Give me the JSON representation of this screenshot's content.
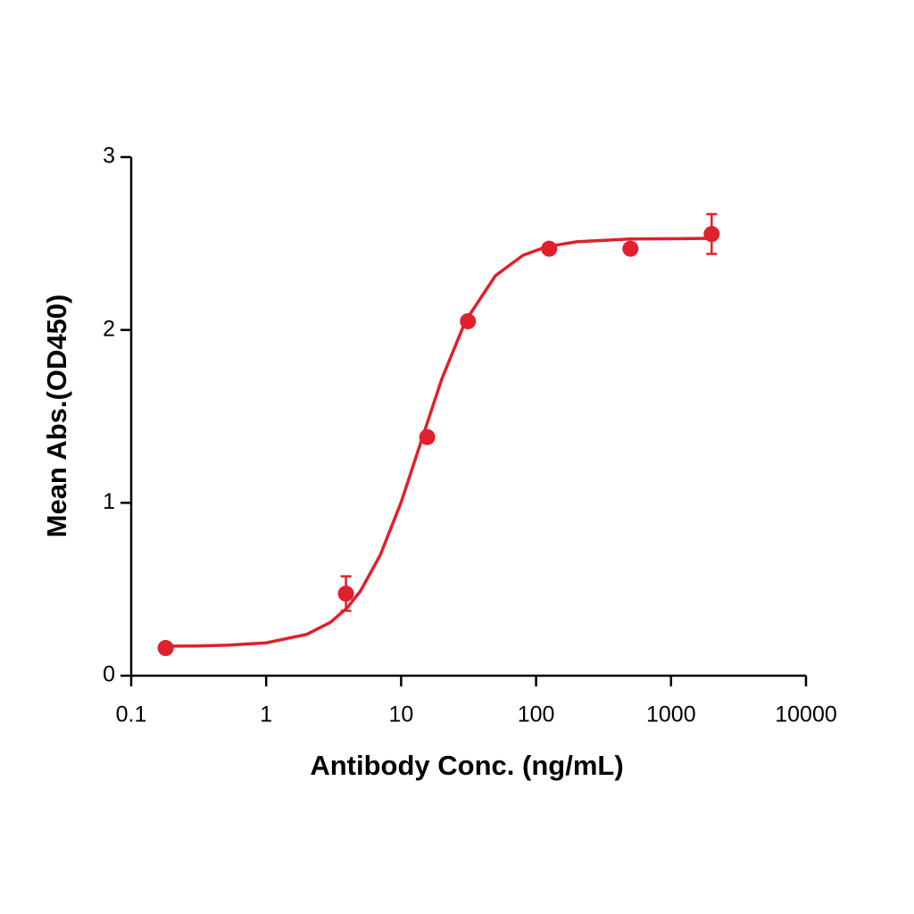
{
  "chart_data": {
    "type": "scatter",
    "xlabel": "Antibody Conc. (ng/mL)",
    "ylabel": "Mean Abs.(OD450)",
    "xscale": "log",
    "xlim": [
      0.1,
      10000
    ],
    "xticks": [
      0.1,
      1,
      10,
      100,
      1000,
      10000
    ],
    "ylim": [
      0,
      3
    ],
    "yticks": [
      0,
      1,
      2,
      3
    ],
    "series": [
      {
        "color": "#e0202c",
        "x": [
          0.18,
          3.9,
          15.6,
          31.25,
          125,
          500,
          2000
        ],
        "values": [
          0.16,
          0.475,
          1.38,
          2.05,
          2.47,
          2.47,
          2.555
        ],
        "errors": [
          null,
          0.1,
          null,
          null,
          null,
          null,
          0.115
        ]
      }
    ],
    "fit": {
      "color": "#e0202c",
      "x": [
        0.18,
        0.3,
        0.5,
        1,
        2,
        3,
        4,
        5,
        7,
        10,
        14,
        20,
        30,
        50,
        80,
        120,
        200,
        500,
        2000
      ],
      "values": [
        0.171,
        0.172,
        0.176,
        0.19,
        0.239,
        0.309,
        0.394,
        0.49,
        0.697,
        1.003,
        1.35,
        1.716,
        2.052,
        2.314,
        2.432,
        2.482,
        2.51,
        2.526,
        2.53
      ]
    }
  }
}
